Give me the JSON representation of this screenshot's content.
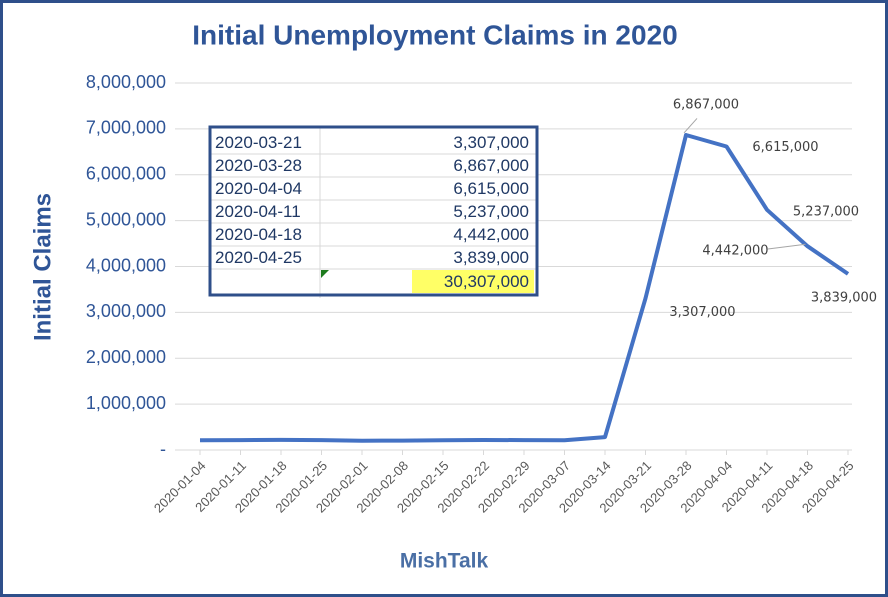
{
  "chart_data": {
    "type": "line",
    "title": "Initial Unemployment Claims in 2020",
    "y_label": "Initial Claims",
    "x_label": "MishTalk",
    "categories": [
      "2020-01-04",
      "2020-01-11",
      "2020-01-18",
      "2020-01-25",
      "2020-02-01",
      "2020-02-08",
      "2020-02-15",
      "2020-02-22",
      "2020-02-29",
      "2020-03-07",
      "2020-03-14",
      "2020-03-21",
      "2020-03-28",
      "2020-04-04",
      "2020-04-11",
      "2020-04-18",
      "2020-04-25"
    ],
    "series": [
      {
        "name": "Initial Claims",
        "color": "#4472c4",
        "values": [
          212000,
          215000,
          220000,
          215000,
          203000,
          205000,
          211000,
          219000,
          216000,
          211000,
          282000,
          3307000,
          6867000,
          6615000,
          5237000,
          4442000,
          3839000
        ],
        "value_labels": [
          null,
          null,
          null,
          null,
          null,
          null,
          null,
          null,
          null,
          null,
          null,
          "3,307,000",
          "6,867,000",
          "6,615,000",
          "5,237,000",
          "4,442,000",
          "3,839,000"
        ]
      }
    ],
    "ylim": [
      0,
      8000000
    ],
    "yticks": [
      {
        "value": 0,
        "label": "-"
      },
      {
        "value": 1000000,
        "label": "1,000,000"
      },
      {
        "value": 2000000,
        "label": "2,000,000"
      },
      {
        "value": 3000000,
        "label": "3,000,000"
      },
      {
        "value": 4000000,
        "label": "4,000,000"
      },
      {
        "value": 5000000,
        "label": "5,000,000"
      },
      {
        "value": 6000000,
        "label": "6,000,000"
      },
      {
        "value": 7000000,
        "label": "7,000,000"
      },
      {
        "value": 8000000,
        "label": "8,000,000"
      }
    ],
    "grid": true,
    "table": {
      "rows": [
        [
          "2020-03-21",
          "3,307,000"
        ],
        [
          "2020-03-28",
          "6,867,000"
        ],
        [
          "2020-04-04",
          "6,615,000"
        ],
        [
          "2020-04-11",
          "5,237,000"
        ],
        [
          "2020-04-18",
          "4,442,000"
        ],
        [
          "2020-04-25",
          "3,839,000"
        ]
      ],
      "total": "30,307,000"
    }
  }
}
